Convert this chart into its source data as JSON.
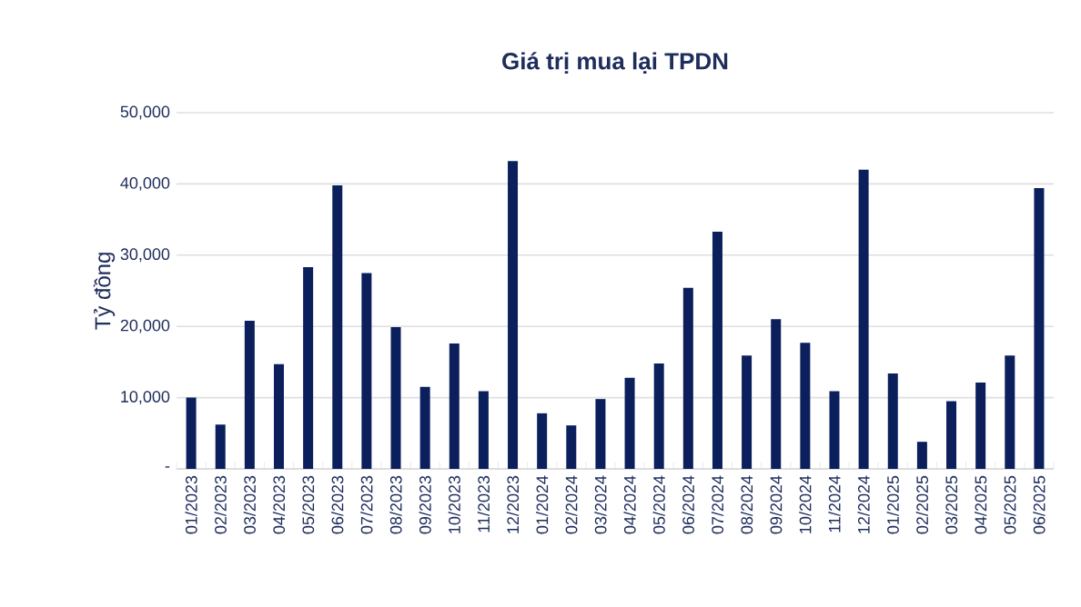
{
  "chart_data": {
    "type": "bar",
    "title": "Giá trị mua lại TPDN",
    "ylabel": "Tỷ đồng",
    "categories": [
      "01/2023",
      "02/2023",
      "03/2023",
      "04/2023",
      "05/2023",
      "06/2023",
      "07/2023",
      "08/2023",
      "09/2023",
      "10/2023",
      "11/2023",
      "12/2023",
      "01/2024",
      "02/2024",
      "03/2024",
      "04/2024",
      "05/2024",
      "06/2024",
      "07/2024",
      "08/2024",
      "09/2024",
      "10/2024",
      "11/2024",
      "12/2024",
      "01/2025",
      "02/2025",
      "03/2025",
      "04/2025",
      "05/2025",
      "06/2025"
    ],
    "values": [
      10000,
      6200,
      20800,
      14700,
      28300,
      39800,
      27500,
      19900,
      11500,
      17600,
      10900,
      43200,
      7800,
      6100,
      9800,
      12800,
      14800,
      25400,
      33300,
      15900,
      21000,
      17700,
      10900,
      42000,
      13400,
      3800,
      9500,
      12100,
      15900,
      39400
    ],
    "color": "#0b1f5c",
    "ylim": [
      0,
      50000
    ],
    "yticks": [
      {
        "value": 0,
        "label": "-"
      },
      {
        "value": 10000,
        "label": "10,000"
      },
      {
        "value": 20000,
        "label": "20,000"
      },
      {
        "value": 30000,
        "label": "30,000"
      },
      {
        "value": 40000,
        "label": "40,000"
      },
      {
        "value": 50000,
        "label": "50,000"
      }
    ],
    "grid": "y"
  }
}
